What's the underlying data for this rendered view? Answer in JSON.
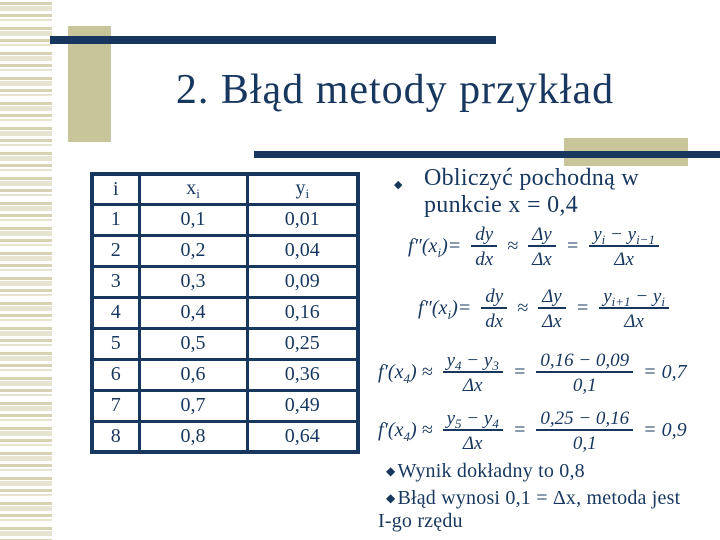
{
  "colors": {
    "navy": "#17375E",
    "tan": "#C9C59B",
    "stripe_light": "#E6E3D0",
    "stripe_dark": "#D7D3B2"
  },
  "title": "2. Błąd metody przykład",
  "table": {
    "headers": [
      {
        "base": "i",
        "sub": ""
      },
      {
        "base": "x",
        "sub": "i"
      },
      {
        "base": "y",
        "sub": "i"
      }
    ],
    "rows": [
      [
        "1",
        "0,1",
        "0,01"
      ],
      [
        "2",
        "0,2",
        "0,04"
      ],
      [
        "3",
        "0,3",
        "0,09"
      ],
      [
        "4",
        "0,4",
        "0,16"
      ],
      [
        "5",
        "0,5",
        "0,25"
      ],
      [
        "6",
        "0,6",
        "0,36"
      ],
      [
        "7",
        "0,7",
        "0,49"
      ],
      [
        "8",
        "0,8",
        "0,64"
      ]
    ]
  },
  "bullets": {
    "glyph": "◆",
    "main_line1": "Obliczyć pochodną w",
    "main_line2": "punkcie x = 0,4",
    "result": "Wynik dokładny to 0,8",
    "error_line1": "Błąd wynosi 0,1 = Δx, metoda jest",
    "error_line2": "I-go rzędu"
  },
  "formulas": [
    {
      "name": "backward-difference-general",
      "items": [
        {
          "t": "f″(x"
        },
        {
          "s": "i"
        },
        {
          "t": ")= "
        },
        {
          "f": {
            "n": [
              {
                "t": "dy"
              }
            ],
            "d": [
              {
                "t": "dx"
              }
            ]
          }
        },
        {
          "t": " ≈ "
        },
        {
          "f": {
            "n": [
              {
                "t": "Δy"
              }
            ],
            "d": [
              {
                "t": "Δx"
              }
            ]
          }
        },
        {
          "t": " = "
        },
        {
          "f": {
            "n": [
              {
                "t": "y"
              },
              {
                "s": "i"
              },
              {
                "t": " − y"
              },
              {
                "s": "i−1"
              }
            ],
            "d": [
              {
                "t": "Δx"
              }
            ]
          }
        }
      ]
    },
    {
      "name": "forward-difference-general",
      "items": [
        {
          "t": "f″(x"
        },
        {
          "s": "i"
        },
        {
          "t": ")= "
        },
        {
          "f": {
            "n": [
              {
                "t": "dy"
              }
            ],
            "d": [
              {
                "t": "dx"
              }
            ]
          }
        },
        {
          "t": " ≈ "
        },
        {
          "f": {
            "n": [
              {
                "t": "Δy"
              }
            ],
            "d": [
              {
                "t": "Δx"
              }
            ]
          }
        },
        {
          "t": " = "
        },
        {
          "f": {
            "n": [
              {
                "t": "y"
              },
              {
                "s": "i+1"
              },
              {
                "t": " − y"
              },
              {
                "s": "i"
              }
            ],
            "d": [
              {
                "t": "Δx"
              }
            ]
          }
        }
      ]
    },
    {
      "name": "backward-difference-at-x4",
      "items": [
        {
          "t": "f′(x"
        },
        {
          "s": "4"
        },
        {
          "t": ") ≈ "
        },
        {
          "f": {
            "n": [
              {
                "t": "y"
              },
              {
                "s": "4"
              },
              {
                "t": " − y"
              },
              {
                "s": "3"
              }
            ],
            "d": [
              {
                "t": "Δx"
              }
            ]
          }
        },
        {
          "t": " = "
        },
        {
          "f": {
            "n": [
              {
                "t": "0,16 − 0,09"
              }
            ],
            "d": [
              {
                "t": "0,1"
              }
            ]
          }
        },
        {
          "t": " = 0,7"
        }
      ]
    },
    {
      "name": "forward-difference-at-x4",
      "items": [
        {
          "t": "f′(x"
        },
        {
          "s": "4"
        },
        {
          "t": ") ≈ "
        },
        {
          "f": {
            "n": [
              {
                "t": "y"
              },
              {
                "s": "5"
              },
              {
                "t": " − y"
              },
              {
                "s": "4"
              }
            ],
            "d": [
              {
                "t": "Δx"
              }
            ]
          }
        },
        {
          "t": " = "
        },
        {
          "f": {
            "n": [
              {
                "t": "0,25 − 0,16"
              }
            ],
            "d": [
              {
                "t": "0,1"
              }
            ]
          }
        },
        {
          "t": " = 0,9"
        }
      ]
    }
  ]
}
